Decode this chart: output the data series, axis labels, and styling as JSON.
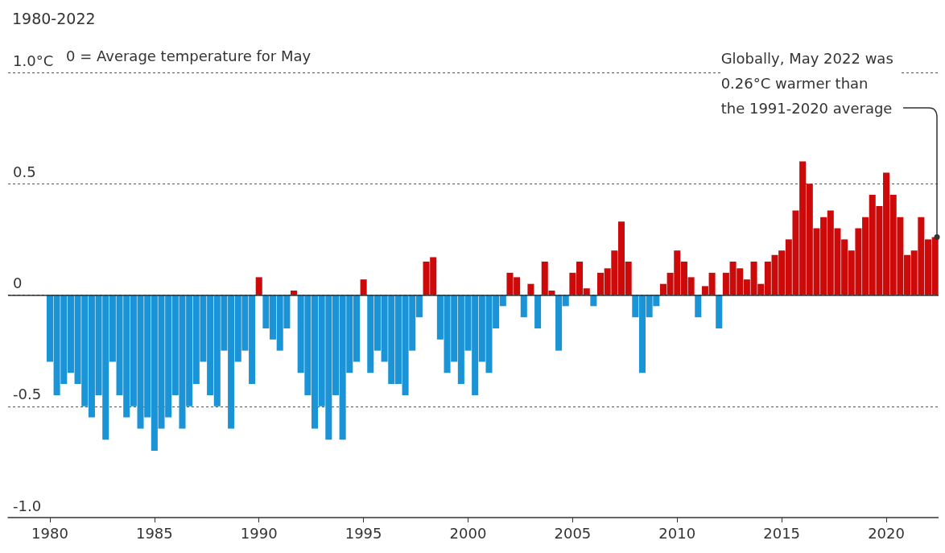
{
  "chart_data": {
    "type": "bar",
    "title": "1980-2022",
    "x": [
      1980,
      1980.333,
      1980.667,
      1981,
      1981.333,
      1981.667,
      1982,
      1982.333,
      1982.667,
      1983,
      1983.333,
      1983.667,
      1984,
      1984.333,
      1984.667,
      1985,
      1985.333,
      1985.667,
      1986,
      1986.333,
      1986.667,
      1987,
      1987.333,
      1987.667,
      1988,
      1988.333,
      1988.667,
      1989,
      1989.333,
      1989.667,
      1990,
      1990.333,
      1990.667,
      1991,
      1991.333,
      1991.667,
      1992,
      1992.333,
      1992.667,
      1993,
      1993.333,
      1993.667,
      1994,
      1994.333,
      1994.667,
      1995,
      1995.333,
      1995.667,
      1996,
      1996.333,
      1996.667,
      1997,
      1997.333,
      1997.667,
      1998,
      1998.333,
      1998.667,
      1999,
      1999.333,
      1999.667,
      2000,
      2000.333,
      2000.667,
      2001,
      2001.333,
      2001.667,
      2002,
      2002.333,
      2002.667,
      2003,
      2003.333,
      2003.667,
      2004,
      2004.333,
      2004.667,
      2005,
      2005.333,
      2005.667,
      2006,
      2006.333,
      2006.667,
      2007,
      2007.333,
      2007.667,
      2008,
      2008.333,
      2008.667,
      2009,
      2009.333,
      2009.667,
      2010,
      2010.333,
      2010.667,
      2011,
      2011.333,
      2011.667,
      2012,
      2012.333,
      2012.667,
      2013,
      2013.333,
      2013.667,
      2014,
      2014.333,
      2014.667,
      2015,
      2015.333,
      2015.667,
      2016,
      2016.333,
      2016.667,
      2017,
      2017.333,
      2017.667,
      2018,
      2018.333,
      2018.667,
      2019,
      2019.333,
      2019.667,
      2020,
      2020.333,
      2020.667,
      2021,
      2021.333,
      2021.667,
      2022,
      2022.333
    ],
    "values": [
      -0.3,
      -0.45,
      -0.4,
      -0.35,
      -0.4,
      -0.5,
      -0.55,
      -0.45,
      -0.65,
      -0.3,
      -0.45,
      -0.55,
      -0.5,
      -0.6,
      -0.55,
      -0.7,
      -0.6,
      -0.55,
      -0.45,
      -0.6,
      -0.5,
      -0.4,
      -0.3,
      -0.45,
      -0.5,
      -0.25,
      -0.6,
      -0.3,
      -0.25,
      -0.4,
      0.08,
      -0.15,
      -0.2,
      -0.25,
      -0.15,
      0.02,
      -0.35,
      -0.45,
      -0.6,
      -0.5,
      -0.65,
      -0.45,
      -0.65,
      -0.35,
      -0.3,
      0.07,
      -0.35,
      -0.25,
      -0.3,
      -0.4,
      -0.4,
      -0.45,
      -0.25,
      -0.1,
      0.15,
      0.17,
      -0.2,
      -0.35,
      -0.3,
      -0.4,
      -0.25,
      -0.45,
      -0.3,
      -0.35,
      -0.15,
      -0.05,
      0.1,
      0.08,
      -0.1,
      0.05,
      -0.15,
      0.15,
      0.02,
      -0.25,
      -0.05,
      0.1,
      0.15,
      0.03,
      -0.05,
      0.1,
      0.12,
      0.2,
      0.33,
      0.15,
      -0.1,
      -0.35,
      -0.1,
      -0.05,
      0.05,
      0.1,
      0.2,
      0.15,
      0.08,
      -0.1,
      0.04,
      0.1,
      -0.15,
      0.1,
      0.15,
      0.12,
      0.07,
      0.15,
      0.05,
      0.15,
      0.18,
      0.2,
      0.25,
      0.38,
      0.6,
      0.5,
      0.3,
      0.35,
      0.38,
      0.3,
      0.25,
      0.2,
      0.3,
      0.35,
      0.45,
      0.4,
      0.55,
      0.45,
      0.35,
      0.18,
      0.2,
      0.35,
      0.25,
      0.26
    ],
    "colors": [
      "#1a94d6",
      "#1a94d6",
      "#1a94d6",
      "#1a94d6",
      "#1a94d6",
      "#1a94d6",
      "#1a94d6",
      "#1a94d6",
      "#1a94d6",
      "#1a94d6",
      "#1a94d6",
      "#1a94d6",
      "#1a94d6",
      "#1a94d6",
      "#1a94d6",
      "#1a94d6",
      "#1a94d6",
      "#1a94d6",
      "#1a94d6",
      "#1a94d6",
      "#1a94d6",
      "#1a94d6",
      "#1a94d6",
      "#1a94d6",
      "#1a94d6",
      "#1a94d6",
      "#1a94d6",
      "#1a94d6",
      "#1a94d6",
      "#1a94d6",
      "#cc0a0a",
      "#1a94d6",
      "#1a94d6",
      "#1a94d6",
      "#1a94d6",
      "#cc0a0a",
      "#1a94d6",
      "#1a94d6",
      "#1a94d6",
      "#1a94d6",
      "#1a94d6",
      "#1a94d6",
      "#1a94d6",
      "#1a94d6",
      "#1a94d6",
      "#cc0a0a",
      "#1a94d6",
      "#1a94d6",
      "#1a94d6",
      "#1a94d6",
      "#1a94d6",
      "#1a94d6",
      "#1a94d6",
      "#1a94d6",
      "#cc0a0a",
      "#cc0a0a",
      "#1a94d6",
      "#1a94d6",
      "#1a94d6",
      "#1a94d6",
      "#1a94d6",
      "#1a94d6",
      "#1a94d6",
      "#1a94d6",
      "#1a94d6",
      "#1a94d6",
      "#cc0a0a",
      "#cc0a0a",
      "#1a94d6",
      "#cc0a0a",
      "#1a94d6",
      "#cc0a0a",
      "#cc0a0a",
      "#1a94d6",
      "#1a94d6",
      "#cc0a0a",
      "#cc0a0a",
      "#cc0a0a",
      "#1a94d6",
      "#cc0a0a",
      "#cc0a0a",
      "#cc0a0a",
      "#cc0a0a",
      "#cc0a0a",
      "#1a94d6",
      "#1a94d6",
      "#1a94d6",
      "#1a94d6",
      "#cc0a0a",
      "#cc0a0a",
      "#cc0a0a",
      "#cc0a0a",
      "#cc0a0a",
      "#1a94d6",
      "#cc0a0a",
      "#cc0a0a",
      "#1a94d6",
      "#cc0a0a",
      "#cc0a0a",
      "#cc0a0a",
      "#cc0a0a",
      "#cc0a0a",
      "#cc0a0a",
      "#cc0a0a",
      "#cc0a0a",
      "#cc0a0a",
      "#cc0a0a",
      "#cc0a0a",
      "#cc0a0a",
      "#cc0a0a",
      "#cc0a0a",
      "#cc0a0a",
      "#cc0a0a",
      "#cc0a0a",
      "#cc0a0a",
      "#cc0a0a",
      "#cc0a0a",
      "#cc0a0a",
      "#cc0a0a",
      "#cc0a0a",
      "#cc0a0a",
      "#cc0a0a",
      "#cc0a0a",
      "#cc0a0a",
      "#cc0a0a",
      "#cc0a0a",
      "#cc0a0a",
      "#cc0a0a"
    ],
    "xlim": [
      1978,
      2022.5
    ],
    "xticks": [
      1980,
      1985,
      1990,
      1995,
      2000,
      2005,
      2010,
      2015,
      2020
    ],
    "ylim": [
      -1,
      1
    ],
    "yticks": [
      {
        "value": -1,
        "label": "-1.0"
      },
      -0.5,
      0,
      0.5,
      {
        "value": 1,
        "label": "1.0°C"
      }
    ],
    "grid": "y",
    "ref_lines": [
      {
        "axis": "y",
        "value": 0,
        "color": "#333333"
      }
    ],
    "annotations": [
      "0 = Average temperature for May",
      {
        "text": "Globally, May 2022 was 0.26°C warmer than the 1991-2020 average",
        "x": 2022.333,
        "y": 0.26
      }
    ]
  }
}
